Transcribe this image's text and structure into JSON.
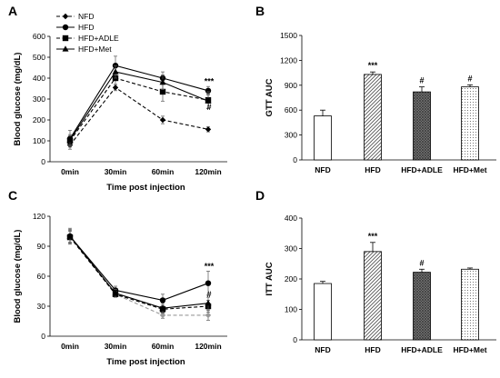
{
  "chart_data": [
    {
      "panel": "A",
      "type": "line",
      "xlabel": "Time post injection",
      "ylabel": "Blood glucose (mg/dL)",
      "categories": [
        "0min",
        "30min",
        "60min",
        "120min"
      ],
      "ylim": [
        0,
        600
      ],
      "yticks": [
        0,
        100,
        200,
        300,
        400,
        500,
        600
      ],
      "legend": "top-left",
      "series": [
        {
          "name": "NFD",
          "values": [
            80,
            355,
            200,
            155
          ],
          "errors": [
            20,
            15,
            18,
            12
          ],
          "marker": "diamond",
          "dashed": true,
          "color": "#000000"
        },
        {
          "name": "HFD",
          "values": [
            110,
            460,
            400,
            340
          ],
          "errors": [
            40,
            45,
            30,
            20
          ],
          "marker": "circle",
          "dashed": false,
          "color": "#000000"
        },
        {
          "name": "HFD+ADLE",
          "values": [
            100,
            400,
            335,
            295
          ],
          "errors": [
            25,
            30,
            45,
            40
          ],
          "marker": "square",
          "dashed": true,
          "color": "#000000"
        },
        {
          "name": "HFD+Met",
          "values": [
            105,
            430,
            380,
            290
          ],
          "errors": [
            25,
            30,
            35,
            35
          ],
          "marker": "triangle",
          "dashed": false,
          "color": "#000000"
        }
      ],
      "annotations": [
        {
          "text": "***",
          "x": "120min",
          "y": 385
        },
        {
          "text": "#",
          "x": "120min",
          "y": 260
        }
      ]
    },
    {
      "panel": "B",
      "type": "bar",
      "ylabel": "GTT AUC",
      "categories": [
        "NFD",
        "HFD",
        "HFD+ADLE",
        "HFD+Met"
      ],
      "values": [
        530,
        1030,
        820,
        880
      ],
      "errors": [
        70,
        30,
        60,
        25
      ],
      "fills": [
        "white",
        "diag",
        "cross",
        "dots"
      ],
      "ylim": [
        0,
        1500
      ],
      "yticks": [
        0,
        300,
        600,
        900,
        1200,
        1500
      ],
      "annotations": [
        "",
        "***",
        "#",
        "#"
      ]
    },
    {
      "panel": "C",
      "type": "line",
      "xlabel": "Time post injection",
      "ylabel": "Blood glucose (mg/dL)",
      "categories": [
        "0min",
        "30min",
        "60min",
        "120min"
      ],
      "ylim": [
        0,
        120
      ],
      "yticks": [
        0,
        30,
        60,
        90,
        120
      ],
      "series": [
        {
          "name": "NFD",
          "values": [
            100,
            42,
            21,
            21
          ],
          "errors": [
            6,
            3,
            3,
            5
          ],
          "marker": "diamond",
          "dashed": true,
          "color": "#999999"
        },
        {
          "name": "HFD",
          "values": [
            100,
            46,
            36,
            53
          ],
          "errors": [
            8,
            4,
            6,
            12
          ],
          "marker": "circle",
          "dashed": false,
          "color": "#000000"
        },
        {
          "name": "HFD+ADLE",
          "values": [
            99,
            42,
            27,
            30
          ],
          "errors": [
            6,
            3,
            4,
            6
          ],
          "marker": "square",
          "dashed": true,
          "color": "#000000"
        },
        {
          "name": "HFD+Met",
          "values": [
            100,
            43,
            28,
            33
          ],
          "errors": [
            7,
            4,
            5,
            6
          ],
          "marker": "triangle",
          "dashed": false,
          "color": "#000000"
        }
      ],
      "annotations": [
        {
          "text": "***",
          "x": "120min",
          "y": 70
        },
        {
          "text": "#",
          "x": "120min",
          "y": 42
        }
      ]
    },
    {
      "panel": "D",
      "type": "bar",
      "ylabel": "ITT AUC",
      "categories": [
        "NFD",
        "HFD",
        "HFD+ADLE",
        "HFD+Met"
      ],
      "values": [
        185,
        290,
        222,
        232
      ],
      "errors": [
        7,
        30,
        10,
        4
      ],
      "fills": [
        "white",
        "diag",
        "cross",
        "dots"
      ],
      "ylim": [
        0,
        400
      ],
      "yticks": [
        0,
        100,
        200,
        300,
        400
      ],
      "annotations": [
        "",
        "***",
        "#",
        ""
      ]
    }
  ]
}
